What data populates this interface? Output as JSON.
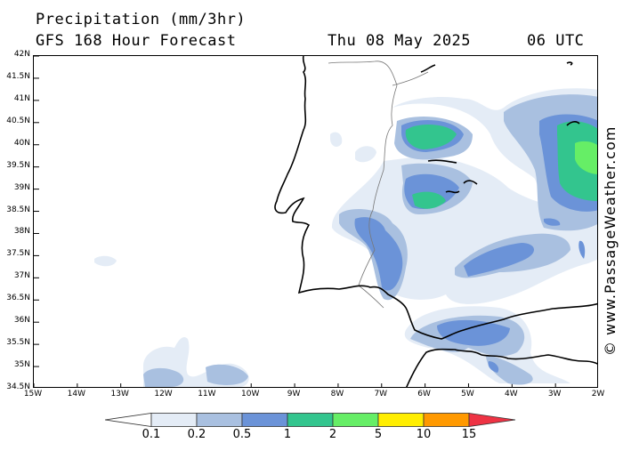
{
  "header": {
    "title": "Precipitation (mm/3hr)",
    "subtitle": "GFS 168 Hour Forecast",
    "valid_date": "Thu 08 May 2025",
    "valid_time": "06 UTC"
  },
  "map": {
    "latitude_labels": [
      "42N",
      "41.5N",
      "41N",
      "40.5N",
      "40N",
      "39.5N",
      "39N",
      "38.5N",
      "38N",
      "37.5N",
      "37N",
      "36.5N",
      "36N",
      "35.5N",
      "35N",
      "34.5N"
    ],
    "longitude_labels": [
      "15W",
      "14W",
      "13W",
      "12W",
      "11W",
      "10W",
      "9W",
      "8W",
      "7W",
      "6W",
      "5W",
      "4W",
      "3W",
      "2W"
    ],
    "extent": {
      "west": -15,
      "east": -2,
      "south": 34.5,
      "north": 42
    },
    "region": "Iberian Peninsula and Strait of Gibraltar"
  },
  "legend": {
    "levels": [
      "0.1",
      "0.2",
      "0.5",
      "1",
      "2",
      "5",
      "10",
      "15"
    ],
    "colors": [
      "#ffffff",
      "#e4ecf6",
      "#a9c0e0",
      "#6b93d8",
      "#33c58e",
      "#66ee66",
      "#ffee00",
      "#ff9900",
      "#ee3344"
    ]
  },
  "credit": "© www.PassageWeather.com"
}
